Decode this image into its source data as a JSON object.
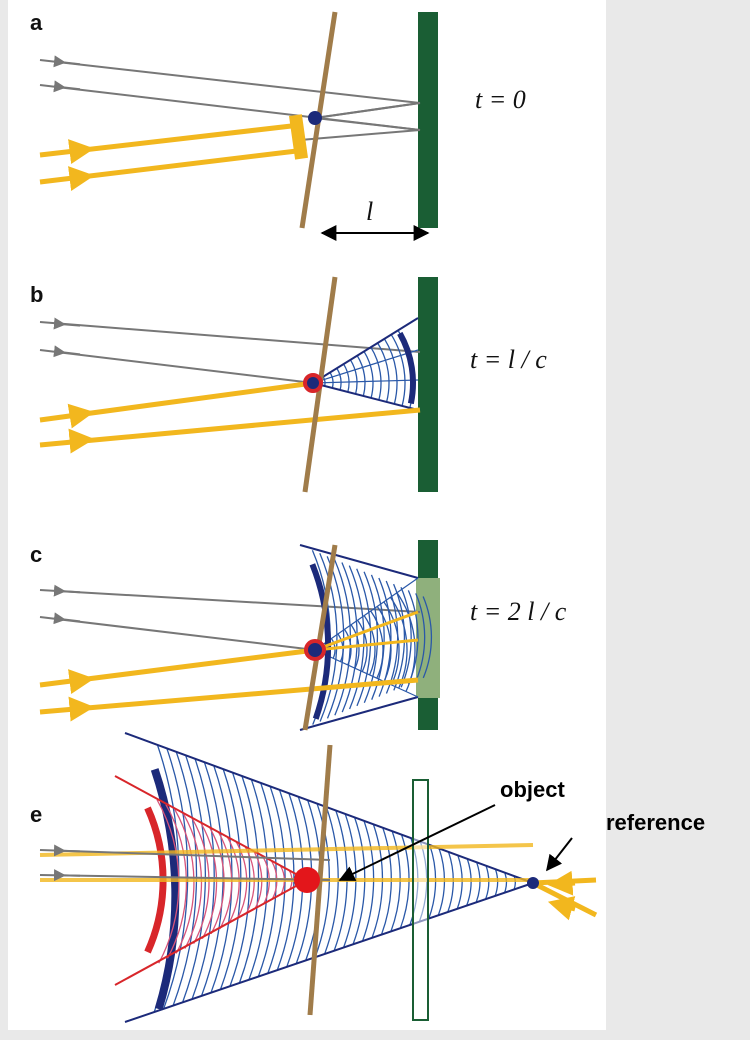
{
  "panels": [
    {
      "label": "a",
      "time_label": "t = 0"
    },
    {
      "label": "b",
      "time_label": "t = l / c"
    },
    {
      "label": "c",
      "time_label": "t = 2 l / c"
    },
    {
      "label": "e"
    }
  ],
  "distance_label": "l",
  "annotations": {
    "object": "object",
    "reference": "reference"
  }
}
